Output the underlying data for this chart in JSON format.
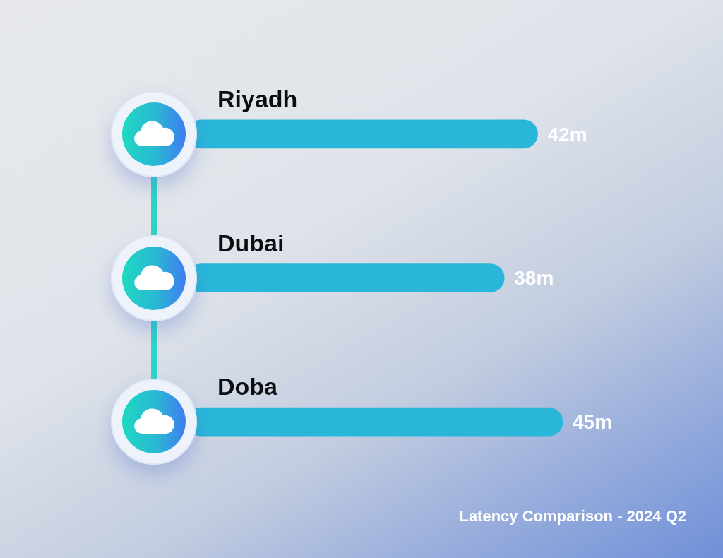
{
  "chart_data": {
    "type": "bar",
    "orientation": "horizontal",
    "title": "Latency Comparison - 2024 Q2",
    "categories": [
      "Riyadh",
      "Dubai",
      "Doba"
    ],
    "values": [
      42,
      38,
      45
    ],
    "color": "#2ab6d8",
    "value_labels": [
      "42m",
      "38m",
      "45m"
    ]
  }
}
